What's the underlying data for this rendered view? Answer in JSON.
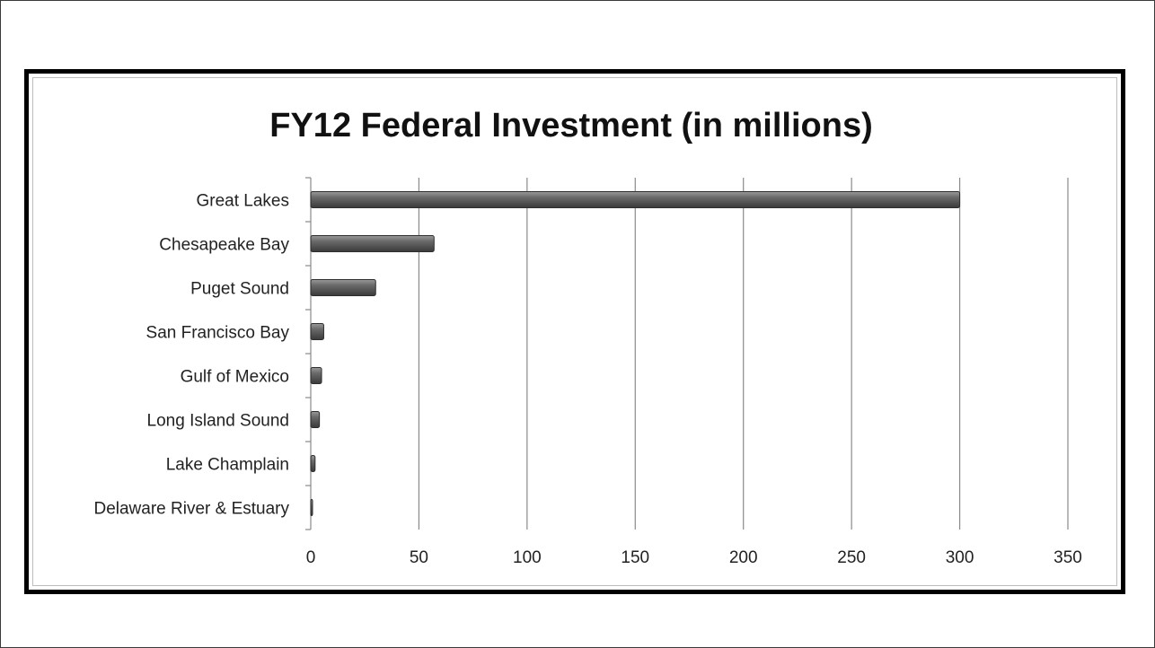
{
  "chart_data": {
    "type": "bar",
    "orientation": "horizontal",
    "title": "FY12 Federal Investment (in millions)",
    "categories": [
      "Great Lakes",
      "Chesapeake Bay",
      "Puget Sound",
      "San Francisco Bay",
      "Gulf of Mexico",
      "Long Island Sound",
      "Lake Champlain",
      "Delaware River & Estuary"
    ],
    "values": [
      300,
      57,
      30,
      6,
      5,
      4,
      2,
      0.5
    ],
    "xlim": [
      0,
      350
    ],
    "xticks": [
      "0",
      "50",
      "100",
      "150",
      "200",
      "250",
      "300",
      "350"
    ],
    "grid": true,
    "legend": "none",
    "bar_color": "#5e5e5e"
  }
}
